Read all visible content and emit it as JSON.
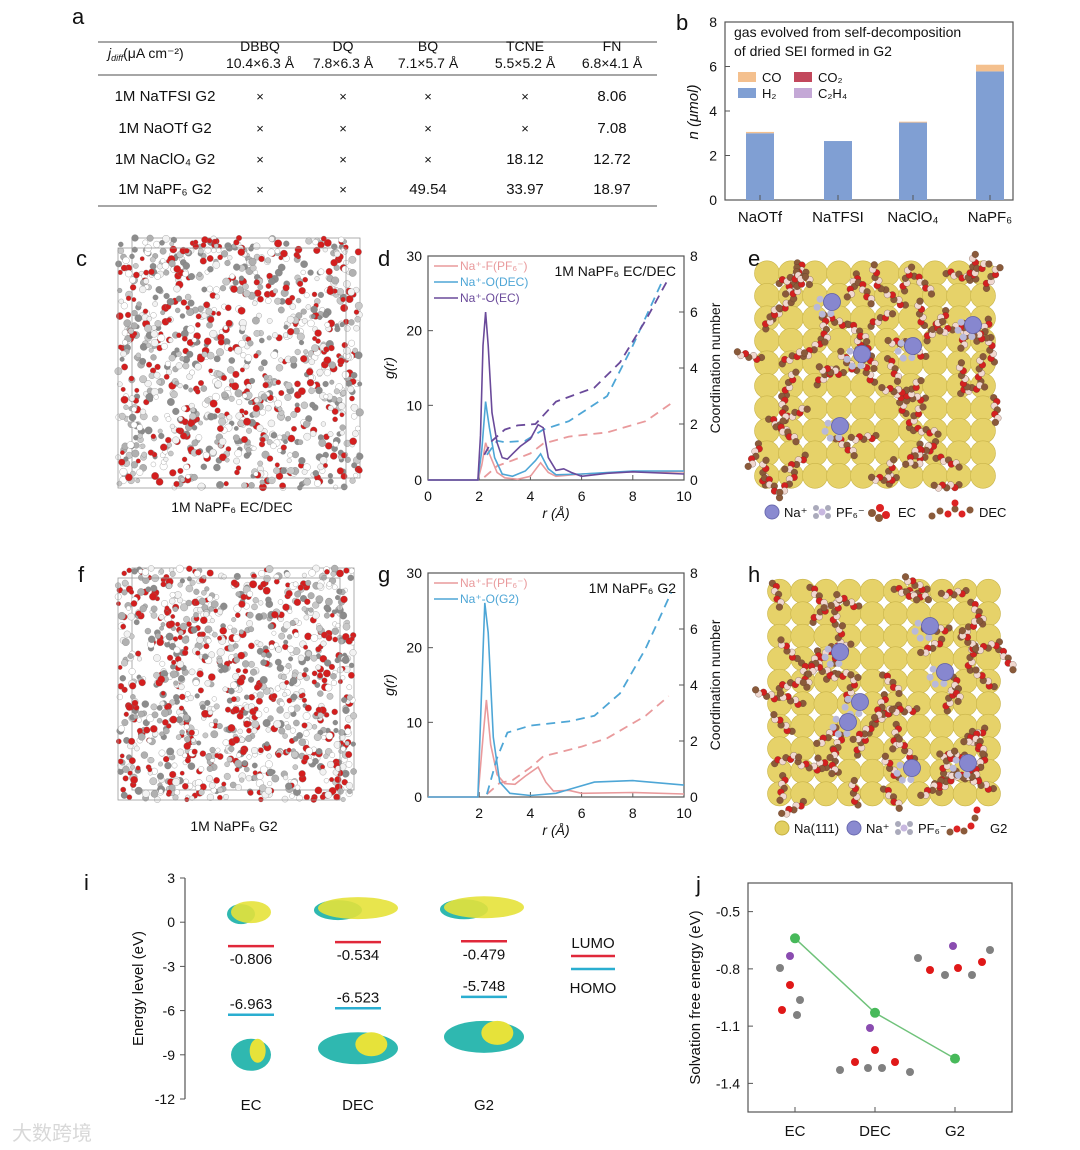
{
  "panel_labels": {
    "a": "a",
    "b": "b",
    "c": "c",
    "d": "d",
    "e": "e",
    "f": "f",
    "g": "g",
    "h": "h",
    "i": "i",
    "j": "j"
  },
  "table_a": {
    "corner_label_main": "j",
    "corner_label_sub": "diff",
    "corner_label_unit": "(μA cm⁻²)",
    "columns": [
      {
        "name": "DBBQ",
        "size": "10.4×6.3 Å"
      },
      {
        "name": "DQ",
        "size": "7.8×6.3 Å"
      },
      {
        "name": "BQ",
        "size": "7.1×5.7 Å"
      },
      {
        "name": "TCNE",
        "size": "5.5×5.2 Å"
      },
      {
        "name": "FN",
        "size": "6.8×4.1 Å"
      }
    ],
    "rows": [
      {
        "label": "1M NaTFSI G2",
        "cells": [
          "×",
          "×",
          "×",
          "×",
          "8.06"
        ]
      },
      {
        "label": "1M NaOTf  G2",
        "cells": [
          "×",
          "×",
          "×",
          "×",
          "7.08"
        ]
      },
      {
        "label": "1M NaClO₄ G2",
        "cells": [
          "×",
          "×",
          "×",
          "18.12",
          "12.72"
        ]
      },
      {
        "label": "1M NaPF₆ G2",
        "cells": [
          "×",
          "×",
          "49.54",
          "33.97",
          "18.97"
        ]
      }
    ]
  },
  "captions": {
    "c": "1M NaPF₆ EC/DEC",
    "f": "1M NaPF₆ G2"
  },
  "legend_e": {
    "na": "Na⁺",
    "pf6": "PF₆⁻",
    "ec": "EC",
    "dec": "DEC"
  },
  "legend_h": {
    "na111": "Na(111)",
    "na": "Na⁺",
    "pf6": "PF₆⁻",
    "g2": "G2"
  },
  "colors": {
    "H2": "#809fd3",
    "CO": "#f4c08e",
    "CO2": "#c2475c",
    "C2H4": "#c4a8d6",
    "pink": "#e99a9c",
    "blue": "#4ea6d6",
    "purple": "#6a4a9a",
    "green": "#47b95a",
    "lumo": "#e0283a",
    "homo": "#2aaed0"
  },
  "watermark": "大数跨境",
  "chart_data": [
    {
      "id": "b",
      "type": "bar",
      "stacked": true,
      "title": "gas evolved from self-decomposition",
      "title2": "of dried SEI formed in G2",
      "categories": [
        "NaOTf",
        "NaTFSI",
        "NaClO₄",
        "NaPF₆"
      ],
      "series": [
        {
          "name": "H₂",
          "key": "H2",
          "values": [
            3.0,
            2.65,
            3.48,
            5.78
          ]
        },
        {
          "name": "CO",
          "key": "CO",
          "values": [
            0.06,
            0.0,
            0.04,
            0.3
          ]
        },
        {
          "name": "CO₂",
          "key": "CO2",
          "values": [
            0,
            0,
            0,
            0
          ]
        },
        {
          "name": "C₂H₄",
          "key": "C2H4",
          "values": [
            0,
            0,
            0,
            0
          ]
        }
      ],
      "legend_order": [
        "CO",
        "CO2",
        "H2",
        "C2H4"
      ],
      "ylabel": "n (μmol)",
      "ylim": [
        0,
        8
      ],
      "yticks": [
        0,
        2,
        4,
        6,
        8
      ],
      "legend": "top-left"
    },
    {
      "id": "d",
      "type": "line",
      "title": "1M NaPF₆ EC/DEC",
      "xlabel": "r (Å)",
      "ylabel": "g(r)",
      "y2label": "Coordination number",
      "xlim": [
        0,
        10
      ],
      "ylim": [
        0,
        30
      ],
      "y2lim": [
        0,
        8
      ],
      "xticks": [
        0,
        2,
        4,
        6,
        8,
        10
      ],
      "yticks": [
        0,
        10,
        20,
        30
      ],
      "y2ticks": [
        0,
        2,
        4,
        6,
        8
      ],
      "series": [
        {
          "name": "Na⁺-F(PF₆⁻)",
          "color": "pink",
          "gr": [
            [
              0,
              0
            ],
            [
              1.95,
              0
            ],
            [
              2.1,
              2
            ],
            [
              2.25,
              5
            ],
            [
              2.4,
              3.5
            ],
            [
              2.7,
              1
            ],
            [
              3,
              0.3
            ],
            [
              3.5,
              0.1
            ],
            [
              4,
              0.5
            ],
            [
              4.4,
              2.3
            ],
            [
              4.7,
              1
            ],
            [
              5,
              0.5
            ],
            [
              6,
              0.8
            ],
            [
              8,
              1.1
            ],
            [
              10,
              1.1
            ]
          ],
          "cn": [
            [
              2.2,
              0.1
            ],
            [
              2.7,
              0.5
            ],
            [
              3.3,
              0.7
            ],
            [
              4,
              0.95
            ],
            [
              4.5,
              1.3
            ],
            [
              5.5,
              1.55
            ],
            [
              7,
              1.7
            ],
            [
              8.5,
              2.1
            ],
            [
              9.6,
              2.8
            ]
          ]
        },
        {
          "name": "Na⁺-O(DEC)",
          "color": "blue",
          "gr": [
            [
              0,
              0
            ],
            [
              1.95,
              0
            ],
            [
              2.1,
              4
            ],
            [
              2.25,
              10.5
            ],
            [
              2.4,
              7
            ],
            [
              2.6,
              3
            ],
            [
              2.9,
              0.8
            ],
            [
              3.3,
              0.5
            ],
            [
              3.8,
              1.2
            ],
            [
              4.2,
              2.6
            ],
            [
              4.4,
              3.5
            ],
            [
              4.7,
              1.5
            ],
            [
              5,
              0.7
            ],
            [
              6,
              0.8
            ],
            [
              8,
              1.2
            ],
            [
              10,
              1.2
            ]
          ],
          "cn": [
            [
              2.3,
              0.9
            ],
            [
              2.7,
              1.4
            ],
            [
              3,
              1.35
            ],
            [
              3.8,
              1.4
            ],
            [
              4.5,
              1.8
            ],
            [
              5.5,
              2.1
            ],
            [
              7,
              3.0
            ],
            [
              8,
              4.8
            ],
            [
              9.2,
              7.2
            ]
          ]
        },
        {
          "name": "Na⁺-O(EC)",
          "color": "purple",
          "gr": [
            [
              0,
              0
            ],
            [
              1.95,
              0
            ],
            [
              2.05,
              6
            ],
            [
              2.15,
              18
            ],
            [
              2.25,
              22.5
            ],
            [
              2.35,
              18
            ],
            [
              2.5,
              9
            ],
            [
              2.7,
              5
            ],
            [
              2.9,
              3
            ],
            [
              3.1,
              2.8
            ],
            [
              3.3,
              3.5
            ],
            [
              3.6,
              4.5
            ],
            [
              4,
              5.5
            ],
            [
              4.3,
              7.4
            ],
            [
              4.5,
              7
            ],
            [
              4.7,
              3
            ],
            [
              5,
              1.3
            ],
            [
              5.3,
              1.5
            ],
            [
              5.6,
              1
            ],
            [
              6,
              0.5
            ],
            [
              7,
              0.9
            ],
            [
              8,
              1.1
            ],
            [
              10,
              0.8
            ]
          ],
          "cn": [
            [
              2.2,
              0.9
            ],
            [
              2.5,
              1.4
            ],
            [
              3,
              1.8
            ],
            [
              3.5,
              1.95
            ],
            [
              4.2,
              2.0
            ],
            [
              5,
              2.8
            ],
            [
              6.5,
              3.3
            ],
            [
              7.5,
              4.2
            ],
            [
              8.5,
              5.7
            ],
            [
              9.4,
              7.2
            ]
          ]
        }
      ]
    },
    {
      "id": "g",
      "type": "line",
      "title": "1M NaPF₆ G2",
      "xlabel": "r (Å)",
      "ylabel": "g(r)",
      "y2label": "Coordination number",
      "xlim": [
        0,
        10
      ],
      "ylim": [
        0,
        30
      ],
      "y2lim": [
        0,
        8
      ],
      "xticks": [
        2,
        4,
        6,
        8,
        10
      ],
      "yticks": [
        0,
        10,
        20,
        30
      ],
      "y2ticks": [
        0,
        2,
        4,
        6,
        8
      ],
      "series": [
        {
          "name": "Na⁺-F(PF₆⁻)",
          "color": "pink",
          "gr": [
            [
              0,
              0
            ],
            [
              1.95,
              0
            ],
            [
              2.15,
              8
            ],
            [
              2.28,
              13
            ],
            [
              2.45,
              7
            ],
            [
              2.7,
              3
            ],
            [
              3,
              1.8
            ],
            [
              3.4,
              1.7
            ],
            [
              3.8,
              2.8
            ],
            [
              4.3,
              4
            ],
            [
              4.6,
              2
            ],
            [
              4.9,
              0.8
            ],
            [
              5.5,
              0.9
            ],
            [
              6,
              0.5
            ],
            [
              8,
              0.6
            ],
            [
              10,
              0.4
            ]
          ],
          "cn": [
            [
              2.3,
              0.1
            ],
            [
              2.8,
              0.5
            ],
            [
              3.3,
              0.6
            ],
            [
              4,
              1.05
            ],
            [
              4.5,
              1.45
            ],
            [
              6,
              1.8
            ],
            [
              7,
              2.1
            ],
            [
              8.5,
              2.9
            ],
            [
              9.4,
              3.6
            ]
          ]
        },
        {
          "name": "Na⁺-O(G2)",
          "color": "blue",
          "gr": [
            [
              0,
              0
            ],
            [
              1.95,
              0
            ],
            [
              2.1,
              15
            ],
            [
              2.22,
              26
            ],
            [
              2.35,
              22
            ],
            [
              2.55,
              8
            ],
            [
              2.8,
              2
            ],
            [
              3.2,
              0.5
            ],
            [
              4,
              0.2
            ],
            [
              5,
              0.5
            ],
            [
              5.5,
              1
            ],
            [
              6.5,
              2
            ],
            [
              8,
              2.2
            ],
            [
              10,
              1.6
            ]
          ],
          "cn": [
            [
              2.3,
              0.1
            ],
            [
              2.7,
              1.4
            ],
            [
              3.1,
              2.3
            ],
            [
              4,
              2.55
            ],
            [
              5.5,
              2.7
            ],
            [
              6.5,
              2.9
            ],
            [
              7.5,
              3.7
            ],
            [
              8.5,
              5.3
            ],
            [
              9.5,
              7.3
            ]
          ]
        }
      ]
    },
    {
      "id": "i",
      "type": "energy-level",
      "ylabel": "Energy level (eV)",
      "ylim": [
        -12,
        3
      ],
      "yticks": [
        3,
        0,
        -3,
        -6,
        -9,
        -12
      ],
      "categories": [
        "EC",
        "DEC",
        "G2"
      ],
      "lumo": [
        -0.806,
        -0.534,
        -0.479
      ],
      "homo": [
        -6.963,
        -6.523,
        -5.748
      ],
      "lumo_labels": [
        "-0.806",
        "-0.534",
        "-0.479"
      ],
      "homo_labels": [
        "-6.963",
        "-6.523",
        "-5.748"
      ],
      "legend": [
        "LUMO",
        "HOMO"
      ]
    },
    {
      "id": "j",
      "type": "line",
      "ylabel": "Solvation free energy (eV)",
      "categories": [
        "EC",
        "DEC",
        "G2"
      ],
      "values": [
        -0.64,
        -1.03,
        -1.27
      ],
      "ylim": [
        -1.55,
        -0.35
      ],
      "yticks": [
        -0.5,
        -0.8,
        -1.1,
        -1.4
      ]
    }
  ]
}
